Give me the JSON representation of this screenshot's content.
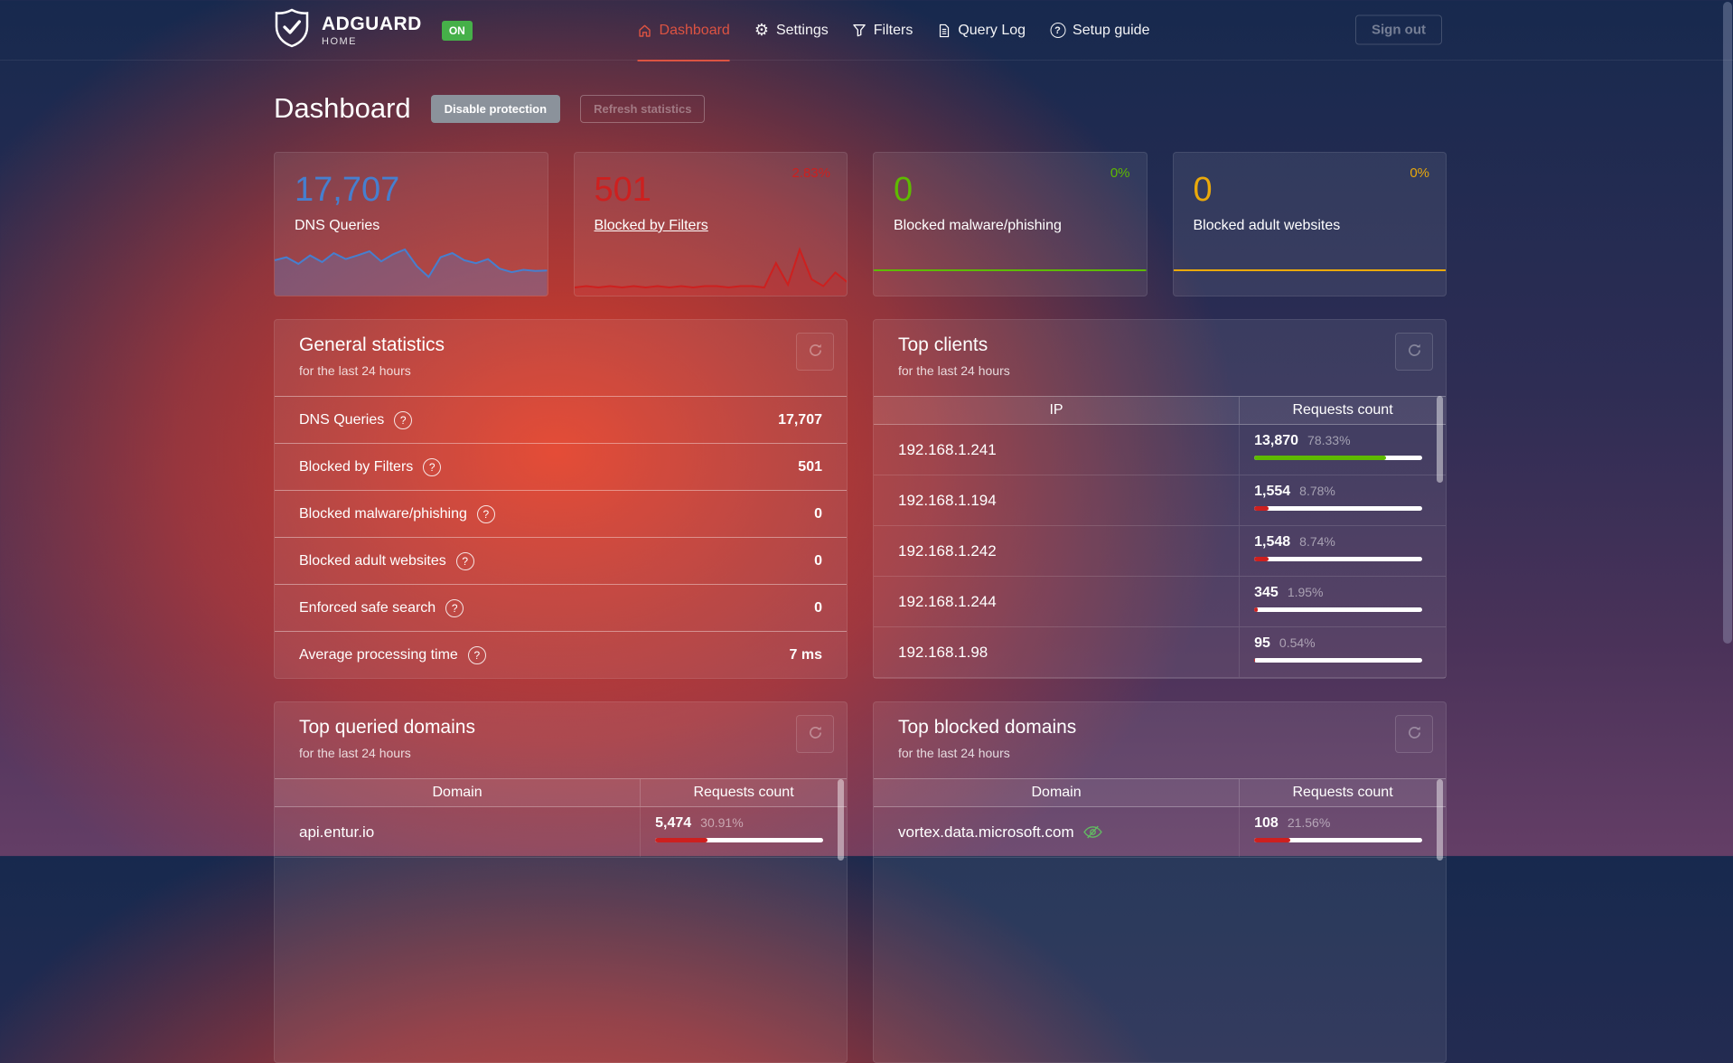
{
  "theme": {
    "accent_red": "#dc5342",
    "badge_green": "#46b049",
    "eye_green": "#62ba62"
  },
  "nav": {
    "brand": {
      "name": "ADGUARD",
      "sub": "HOME",
      "badge": "ON"
    },
    "items": [
      {
        "label": "Dashboard",
        "icon": "home-icon",
        "active": true
      },
      {
        "label": "Settings",
        "icon": "gear-icon",
        "active": false
      },
      {
        "label": "Filters",
        "icon": "funnel-icon",
        "active": false
      },
      {
        "label": "Query Log",
        "icon": "document-icon",
        "active": false
      },
      {
        "label": "Setup guide",
        "icon": "help-circle-icon",
        "active": false
      }
    ],
    "sign_out": "Sign out"
  },
  "header": {
    "title": "Dashboard",
    "disable_protection": "Disable protection",
    "refresh_statistics": "Refresh statistics"
  },
  "stat_cards": [
    {
      "value": "17,707",
      "label": "DNS Queries",
      "percent": "",
      "color": "#467fcf",
      "fill_color": "rgba(70,127,207,0.30)",
      "spark_fill": true,
      "sparkline": [
        50,
        55,
        44,
        58,
        47,
        62,
        52,
        58,
        65,
        48,
        60,
        68,
        40,
        22,
        55,
        62,
        50,
        45,
        52,
        36,
        30,
        34,
        32,
        33
      ]
    },
    {
      "value": "501",
      "label": "Blocked by Filters",
      "percent": "2.83%",
      "color": "#cd201f",
      "fill_color": "rgba(205,32,31,0.28)",
      "spark_fill": true,
      "sparkline": [
        2,
        3,
        2,
        3,
        2,
        3,
        2,
        3,
        2,
        3,
        2,
        3,
        3,
        2,
        3,
        3,
        2,
        20,
        4,
        30,
        8,
        3,
        13,
        6
      ]
    },
    {
      "value": "0",
      "label": "Blocked malware/phishing",
      "percent": "0%",
      "color": "#5eba00",
      "fill_color": "",
      "spark_fill": false,
      "sparkline": [
        0,
        0,
        0
      ]
    },
    {
      "value": "0",
      "label": "Blocked adult websites",
      "percent": "0%",
      "color": "#eaa90b",
      "fill_color": "",
      "spark_fill": false,
      "sparkline": [
        0,
        0,
        0
      ]
    }
  ],
  "general_statistics": {
    "title": "General statistics",
    "subtitle": "for the last 24 hours",
    "rows": [
      {
        "label": "DNS Queries",
        "value": "17,707"
      },
      {
        "label": "Blocked by Filters",
        "value": "501"
      },
      {
        "label": "Blocked malware/phishing",
        "value": "0"
      },
      {
        "label": "Blocked adult websites",
        "value": "0"
      },
      {
        "label": "Enforced safe search",
        "value": "0"
      },
      {
        "label": "Average processing time",
        "value": "7 ms"
      }
    ]
  },
  "top_clients": {
    "title": "Top clients",
    "subtitle": "for the last 24 hours",
    "col_left": "IP",
    "col_right": "Requests count",
    "rows": [
      {
        "ip": "192.168.1.241",
        "count": "13,870",
        "percent": "78.33%",
        "bar_pct": 78.33,
        "bar_color": "#5eba00"
      },
      {
        "ip": "192.168.1.194",
        "count": "1,554",
        "percent": "8.78%",
        "bar_pct": 8.78,
        "bar_color": "#cd201f"
      },
      {
        "ip": "192.168.1.242",
        "count": "1,548",
        "percent": "8.74%",
        "bar_pct": 8.74,
        "bar_color": "#cd201f"
      },
      {
        "ip": "192.168.1.244",
        "count": "345",
        "percent": "1.95%",
        "bar_pct": 1.95,
        "bar_color": "#cd201f"
      },
      {
        "ip": "192.168.1.98",
        "count": "95",
        "percent": "0.54%",
        "bar_pct": 0.54,
        "bar_color": "#cd201f"
      }
    ]
  },
  "top_queried_domains": {
    "title": "Top queried domains",
    "subtitle": "for the last 24 hours",
    "col_left": "Domain",
    "col_right": "Requests count",
    "rows": [
      {
        "domain": "api.entur.io",
        "count": "5,474",
        "percent": "30.91%",
        "bar_pct": 30.91,
        "bar_color": "#cd201f"
      }
    ]
  },
  "top_blocked_domains": {
    "title": "Top blocked domains",
    "subtitle": "for the last 24 hours",
    "col_left": "Domain",
    "col_right": "Requests count",
    "rows": [
      {
        "domain": "vortex.data.microsoft.com",
        "icon": "eye-off-icon",
        "count": "108",
        "percent": "21.56%",
        "bar_pct": 21.56,
        "bar_color": "#cd201f"
      }
    ]
  }
}
